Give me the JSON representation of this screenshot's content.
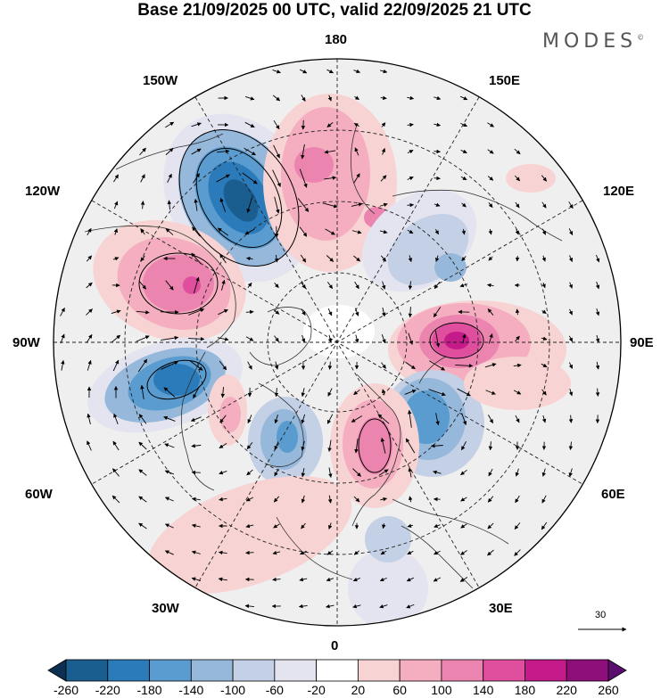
{
  "title": "Base 21/09/2025 00 UTC, valid 22/09/2025 21 UTC",
  "brand": "MODES",
  "brand_mark": "©",
  "longitude_labels": {
    "n180": "180",
    "w150": "150W",
    "e150": "150E",
    "w120": "120W",
    "e120": "120E",
    "w90": "90W",
    "e90": "90E",
    "w60": "60W",
    "e60": "60E",
    "w30": "30W",
    "e30": "30E",
    "s0": "0"
  },
  "reference_vector": {
    "value": "30"
  },
  "colorbar": {
    "ticks": [
      "-260",
      "-220",
      "-180",
      "-140",
      "-100",
      "-60",
      "-20",
      "20",
      "60",
      "100",
      "140",
      "180",
      "220",
      "260"
    ],
    "colors": [
      "#0d2f52",
      "#1a5d8f",
      "#2b7bba",
      "#5a9ccf",
      "#95b8db",
      "#c4d0e6",
      "#e4e4f0",
      "#ffffff",
      "#f8d3d3",
      "#f4aec0",
      "#ec84b0",
      "#df4f9e",
      "#c51b8a",
      "#8e0f7a",
      "#5a0f6e"
    ]
  },
  "map": {
    "background_field": "#efefef",
    "anomalies": [
      {
        "name": "low-gulf-of-alaska",
        "value": -220
      },
      {
        "name": "high-western-canada",
        "value": 180
      },
      {
        "name": "low-hudson-labrador",
        "value": -200
      },
      {
        "name": "high-east-siberia",
        "value": 140
      },
      {
        "name": "high-central-siberia",
        "value": 220
      },
      {
        "name": "low-west-siberia",
        "value": -140
      },
      {
        "name": "high-norway-barents",
        "value": 140
      },
      {
        "name": "low-south-greenland-atlantic",
        "value": -120
      },
      {
        "name": "low-eastern-europe",
        "value": -80
      }
    ]
  }
}
